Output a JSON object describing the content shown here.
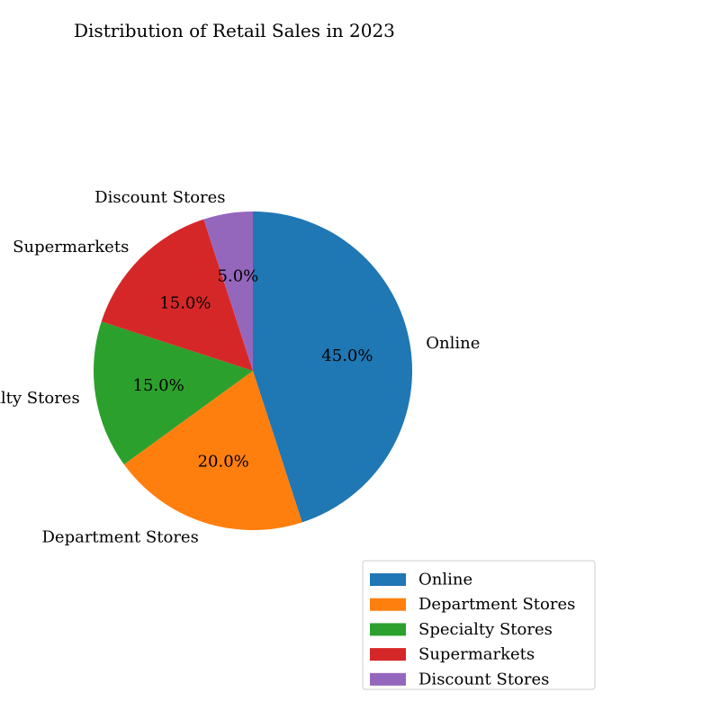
{
  "chart_data": {
    "type": "pie",
    "title": "Distribution of Retail Sales in 2023",
    "categories": [
      "Online",
      "Department Stores",
      "Specialty Stores",
      "Supermarkets",
      "Discount Stores"
    ],
    "values": [
      45.0,
      20.0,
      15.0,
      15.0,
      5.0
    ],
    "percent_labels": [
      "45.0%",
      "20.0%",
      "15.0%",
      "15.0%",
      "5.0%"
    ],
    "colors": [
      "#1f77b4",
      "#ff7f0e",
      "#2ca02c",
      "#d62728",
      "#9467bd"
    ],
    "start_angle_deg": 90,
    "direction": "clockwise",
    "legend": {
      "placement": "lower-right",
      "entries": [
        "Online",
        "Department Stores",
        "Specialty Stores",
        "Supermarkets",
        "Discount Stores"
      ]
    }
  }
}
